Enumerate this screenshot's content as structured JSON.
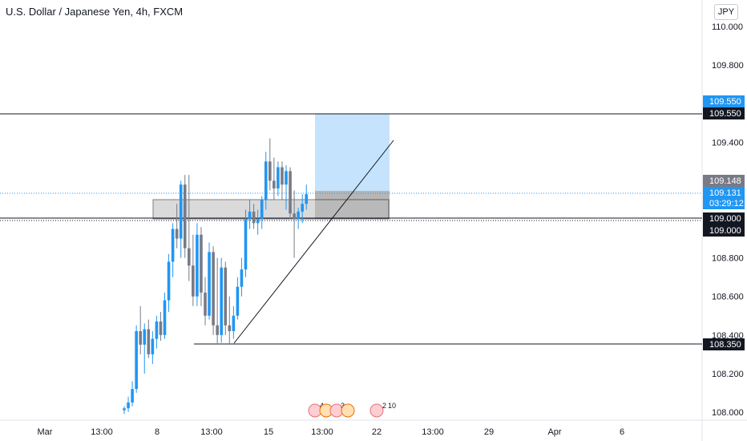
{
  "header": {
    "title": "U.S. Dollar / Japanese Yen, 4h, FXCM"
  },
  "currency_button": {
    "label": "JPY"
  },
  "colors": {
    "bull": "#2196f3",
    "bear": "#787b86",
    "price_line": "#2196f3",
    "target_zone": "#bbdefb",
    "gray_zone": "#bdbdbd"
  },
  "price_tags": {
    "target_top": "109.550",
    "target_line": "109.550",
    "zone_top": "109.148",
    "last_price": "109.131",
    "countdown": "03:29:12",
    "entry_a": "109.000",
    "entry_b": "109.000",
    "support": "108.350"
  },
  "events": {
    "e1": "4",
    "e2": "3",
    "e3": "2",
    "e4": "10"
  },
  "chart_data": {
    "type": "candlestick",
    "title": "U.S. Dollar / Japanese Yen, 4h, FXCM",
    "y_ticks": [
      "110.000",
      "109.800",
      "109.600",
      "109.400",
      "109.200",
      "109.000",
      "108.800",
      "108.600",
      "108.400",
      "108.200",
      "108.000"
    ],
    "ylim": [
      107.97,
      110.1
    ],
    "x_ticks": [
      "Mar",
      "13:00",
      "8",
      "13:00",
      "15",
      "13:00",
      "22",
      "13:00",
      "29",
      "Apr",
      "6"
    ],
    "horizontal_levels": [
      109.55,
      109.0,
      108.35
    ],
    "last_price": 109.131,
    "candles": [
      [
        108.01,
        108.03,
        107.99,
        108.02
      ],
      [
        108.02,
        108.08,
        108.0,
        108.05
      ],
      [
        108.05,
        108.16,
        108.03,
        108.12
      ],
      [
        108.12,
        108.45,
        108.1,
        108.42
      ],
      [
        108.42,
        108.55,
        108.3,
        108.35
      ],
      [
        108.35,
        108.46,
        108.2,
        108.43
      ],
      [
        108.43,
        108.48,
        108.28,
        108.3
      ],
      [
        108.3,
        108.42,
        108.25,
        108.38
      ],
      [
        108.38,
        108.5,
        108.33,
        108.47
      ],
      [
        108.47,
        108.52,
        108.37,
        108.4
      ],
      [
        108.4,
        108.62,
        108.38,
        108.58
      ],
      [
        108.58,
        108.82,
        108.52,
        108.78
      ],
      [
        108.78,
        108.98,
        108.7,
        108.95
      ],
      [
        108.95,
        109.08,
        108.85,
        108.9
      ],
      [
        108.9,
        109.2,
        108.8,
        109.18
      ],
      [
        109.18,
        109.23,
        108.8,
        108.85
      ],
      [
        108.85,
        109.23,
        108.68,
        108.76
      ],
      [
        108.76,
        108.92,
        108.55,
        108.6
      ],
      [
        108.6,
        108.98,
        108.55,
        108.92
      ],
      [
        108.92,
        108.96,
        108.55,
        108.62
      ],
      [
        108.62,
        108.7,
        108.45,
        108.5
      ],
      [
        108.5,
        108.88,
        108.48,
        108.83
      ],
      [
        108.83,
        108.86,
        108.4,
        108.45
      ],
      [
        108.45,
        108.8,
        108.35,
        108.4
      ],
      [
        108.4,
        108.8,
        108.36,
        108.75
      ],
      [
        108.75,
        108.78,
        108.4,
        108.45
      ],
      [
        108.45,
        108.6,
        108.35,
        108.42
      ],
      [
        108.42,
        108.55,
        108.38,
        108.5
      ],
      [
        108.5,
        108.7,
        108.48,
        108.65
      ],
      [
        108.65,
        108.8,
        108.6,
        108.74
      ],
      [
        108.74,
        109.05,
        108.7,
        109.0
      ],
      [
        109.0,
        109.1,
        108.95,
        109.04
      ],
      [
        109.04,
        109.08,
        108.95,
        108.98
      ],
      [
        108.98,
        109.05,
        108.92,
        109.0
      ],
      [
        109.0,
        109.12,
        108.95,
        109.1
      ],
      [
        109.1,
        109.35,
        109.05,
        109.3
      ],
      [
        109.3,
        109.42,
        109.15,
        109.2
      ],
      [
        109.2,
        109.32,
        109.1,
        109.16
      ],
      [
        109.16,
        109.3,
        109.12,
        109.27
      ],
      [
        109.27,
        109.3,
        109.1,
        109.18
      ],
      [
        109.18,
        109.28,
        109.05,
        109.25
      ],
      [
        109.25,
        109.27,
        109.0,
        109.03
      ],
      [
        109.03,
        109.15,
        108.8,
        109.0
      ],
      [
        109.0,
        109.06,
        108.95,
        109.04
      ],
      [
        109.04,
        109.13,
        108.98,
        109.08
      ],
      [
        109.08,
        109.18,
        109.05,
        109.13
      ]
    ]
  }
}
